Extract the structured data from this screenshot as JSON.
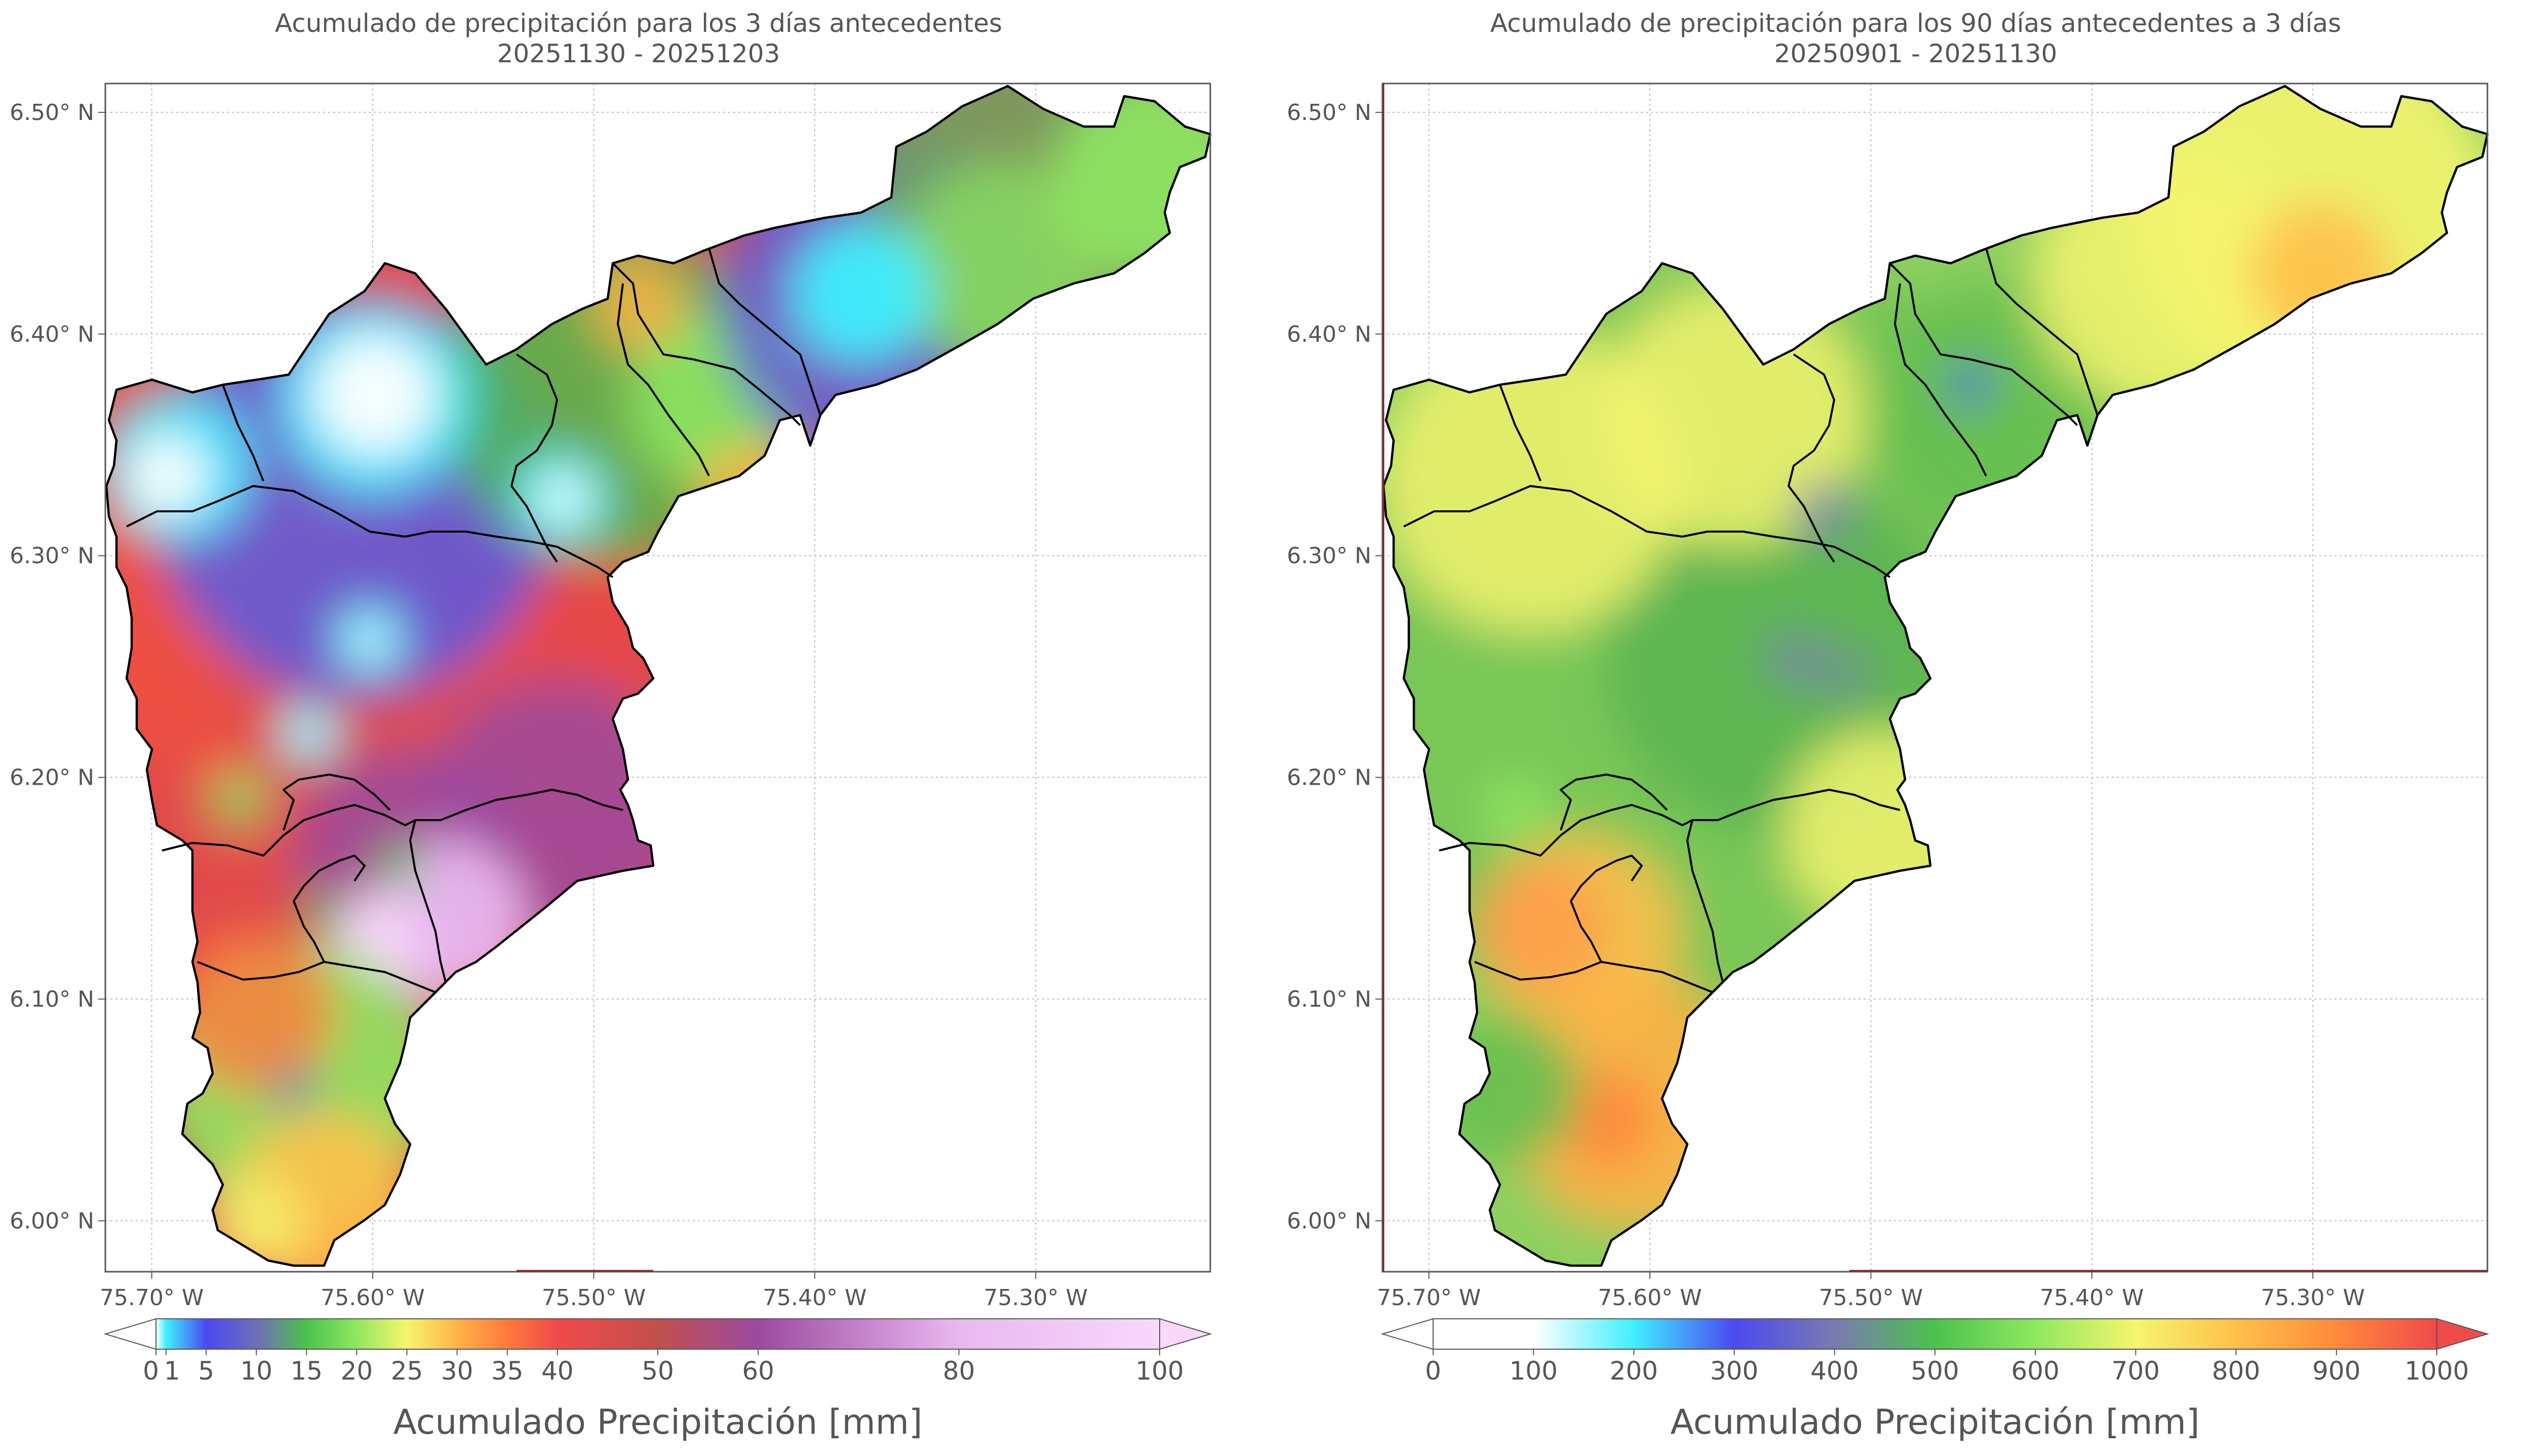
{
  "left": {
    "title_line1": "Acumulado de precipitación para los 3 días antecedentes",
    "title_line2": "20251130 - 20251203",
    "colorbar_label": "Acumulado Precipitación [mm]",
    "colorbar_ticks": [
      "0",
      "1",
      "5",
      "10",
      "15",
      "20",
      "25",
      "30",
      "35",
      "40",
      "50",
      "60",
      "80",
      "100"
    ],
    "colorbar_tick_values": [
      0,
      1,
      5,
      10,
      15,
      20,
      25,
      30,
      35,
      40,
      50,
      60,
      80,
      100
    ],
    "colorbar_min": 0,
    "colorbar_max": 100,
    "colorbar_colors": [
      "#ffffff",
      "#3ff0ff",
      "#4a4af0",
      "#6e6eb8",
      "#4cc24c",
      "#8ee860",
      "#f5f56e",
      "#ffb347",
      "#ff7a3c",
      "#f04a4a",
      "#c0504d",
      "#9c4aa0",
      "#e9b8f0",
      "#f9d8fc"
    ],
    "colorbar_extend": "both"
  },
  "right": {
    "title_line1": "Acumulado de precipitación para los 90 días antecedentes a 3 días",
    "title_line2": "20250901 - 20251130",
    "colorbar_label": "Acumulado Precipitación [mm]",
    "colorbar_ticks": [
      "0",
      "100",
      "200",
      "300",
      "400",
      "500",
      "600",
      "700",
      "800",
      "900",
      "1000"
    ],
    "colorbar_tick_values": [
      0,
      100,
      200,
      300,
      400,
      500,
      600,
      700,
      800,
      900,
      1000
    ],
    "colorbar_min": 0,
    "colorbar_max": 1000,
    "colorbar_colors": [
      "#ffffff",
      "#ffffff",
      "#3ff0ff",
      "#4a4af0",
      "#7a7ab0",
      "#4cc24c",
      "#8ee860",
      "#f5f56e",
      "#ffc04a",
      "#ff8a3c",
      "#f04a4a"
    ],
    "colorbar_extend": "both"
  },
  "axes": {
    "x_ticks": [
      "75.70° W",
      "75.60° W",
      "75.50° W",
      "75.40° W",
      "75.30° W"
    ],
    "x_values": [
      -75.7,
      -75.6,
      -75.5,
      -75.4,
      -75.3
    ],
    "y_ticks": [
      "6.50° N",
      "6.40° N",
      "6.30° N",
      "6.20° N",
      "6.10° N",
      "6.00° N"
    ],
    "y_values": [
      6.5,
      6.4,
      6.3,
      6.2,
      6.1,
      6.0
    ],
    "lon_range": [
      -75.721,
      -75.221
    ],
    "lat_range": [
      5.977,
      6.513
    ],
    "grid": "dotted"
  },
  "colors": {
    "boundary": "#000000",
    "axis_frame": "#555555",
    "grid": "#bbbbbb"
  }
}
